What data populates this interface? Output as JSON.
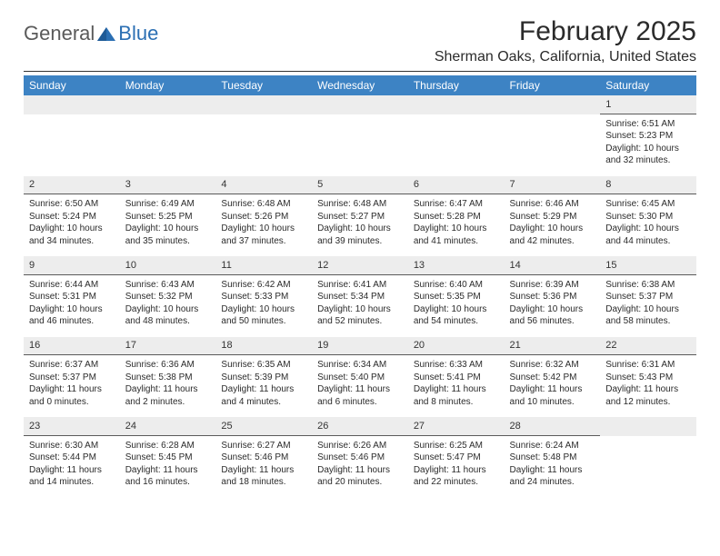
{
  "brand": {
    "text1": "General",
    "text2": "Blue"
  },
  "title": "February 2025",
  "location": "Sherman Oaks, California, United States",
  "colors": {
    "header_bg": "#3d83c4",
    "header_fg": "#ffffff",
    "daynum_bg": "#ededed",
    "rule": "#5a5a5a",
    "logo_blue": "#2b6fb3",
    "logo_gray": "#5a5a5a"
  },
  "days_of_week": [
    "Sunday",
    "Monday",
    "Tuesday",
    "Wednesday",
    "Thursday",
    "Friday",
    "Saturday"
  ],
  "weeks": [
    [
      null,
      null,
      null,
      null,
      null,
      null,
      {
        "n": "1",
        "sunrise": "Sunrise: 6:51 AM",
        "sunset": "Sunset: 5:23 PM",
        "day1": "Daylight: 10 hours",
        "day2": "and 32 minutes."
      }
    ],
    [
      {
        "n": "2",
        "sunrise": "Sunrise: 6:50 AM",
        "sunset": "Sunset: 5:24 PM",
        "day1": "Daylight: 10 hours",
        "day2": "and 34 minutes."
      },
      {
        "n": "3",
        "sunrise": "Sunrise: 6:49 AM",
        "sunset": "Sunset: 5:25 PM",
        "day1": "Daylight: 10 hours",
        "day2": "and 35 minutes."
      },
      {
        "n": "4",
        "sunrise": "Sunrise: 6:48 AM",
        "sunset": "Sunset: 5:26 PM",
        "day1": "Daylight: 10 hours",
        "day2": "and 37 minutes."
      },
      {
        "n": "5",
        "sunrise": "Sunrise: 6:48 AM",
        "sunset": "Sunset: 5:27 PM",
        "day1": "Daylight: 10 hours",
        "day2": "and 39 minutes."
      },
      {
        "n": "6",
        "sunrise": "Sunrise: 6:47 AM",
        "sunset": "Sunset: 5:28 PM",
        "day1": "Daylight: 10 hours",
        "day2": "and 41 minutes."
      },
      {
        "n": "7",
        "sunrise": "Sunrise: 6:46 AM",
        "sunset": "Sunset: 5:29 PM",
        "day1": "Daylight: 10 hours",
        "day2": "and 42 minutes."
      },
      {
        "n": "8",
        "sunrise": "Sunrise: 6:45 AM",
        "sunset": "Sunset: 5:30 PM",
        "day1": "Daylight: 10 hours",
        "day2": "and 44 minutes."
      }
    ],
    [
      {
        "n": "9",
        "sunrise": "Sunrise: 6:44 AM",
        "sunset": "Sunset: 5:31 PM",
        "day1": "Daylight: 10 hours",
        "day2": "and 46 minutes."
      },
      {
        "n": "10",
        "sunrise": "Sunrise: 6:43 AM",
        "sunset": "Sunset: 5:32 PM",
        "day1": "Daylight: 10 hours",
        "day2": "and 48 minutes."
      },
      {
        "n": "11",
        "sunrise": "Sunrise: 6:42 AM",
        "sunset": "Sunset: 5:33 PM",
        "day1": "Daylight: 10 hours",
        "day2": "and 50 minutes."
      },
      {
        "n": "12",
        "sunrise": "Sunrise: 6:41 AM",
        "sunset": "Sunset: 5:34 PM",
        "day1": "Daylight: 10 hours",
        "day2": "and 52 minutes."
      },
      {
        "n": "13",
        "sunrise": "Sunrise: 6:40 AM",
        "sunset": "Sunset: 5:35 PM",
        "day1": "Daylight: 10 hours",
        "day2": "and 54 minutes."
      },
      {
        "n": "14",
        "sunrise": "Sunrise: 6:39 AM",
        "sunset": "Sunset: 5:36 PM",
        "day1": "Daylight: 10 hours",
        "day2": "and 56 minutes."
      },
      {
        "n": "15",
        "sunrise": "Sunrise: 6:38 AM",
        "sunset": "Sunset: 5:37 PM",
        "day1": "Daylight: 10 hours",
        "day2": "and 58 minutes."
      }
    ],
    [
      {
        "n": "16",
        "sunrise": "Sunrise: 6:37 AM",
        "sunset": "Sunset: 5:37 PM",
        "day1": "Daylight: 11 hours",
        "day2": "and 0 minutes."
      },
      {
        "n": "17",
        "sunrise": "Sunrise: 6:36 AM",
        "sunset": "Sunset: 5:38 PM",
        "day1": "Daylight: 11 hours",
        "day2": "and 2 minutes."
      },
      {
        "n": "18",
        "sunrise": "Sunrise: 6:35 AM",
        "sunset": "Sunset: 5:39 PM",
        "day1": "Daylight: 11 hours",
        "day2": "and 4 minutes."
      },
      {
        "n": "19",
        "sunrise": "Sunrise: 6:34 AM",
        "sunset": "Sunset: 5:40 PM",
        "day1": "Daylight: 11 hours",
        "day2": "and 6 minutes."
      },
      {
        "n": "20",
        "sunrise": "Sunrise: 6:33 AM",
        "sunset": "Sunset: 5:41 PM",
        "day1": "Daylight: 11 hours",
        "day2": "and 8 minutes."
      },
      {
        "n": "21",
        "sunrise": "Sunrise: 6:32 AM",
        "sunset": "Sunset: 5:42 PM",
        "day1": "Daylight: 11 hours",
        "day2": "and 10 minutes."
      },
      {
        "n": "22",
        "sunrise": "Sunrise: 6:31 AM",
        "sunset": "Sunset: 5:43 PM",
        "day1": "Daylight: 11 hours",
        "day2": "and 12 minutes."
      }
    ],
    [
      {
        "n": "23",
        "sunrise": "Sunrise: 6:30 AM",
        "sunset": "Sunset: 5:44 PM",
        "day1": "Daylight: 11 hours",
        "day2": "and 14 minutes."
      },
      {
        "n": "24",
        "sunrise": "Sunrise: 6:28 AM",
        "sunset": "Sunset: 5:45 PM",
        "day1": "Daylight: 11 hours",
        "day2": "and 16 minutes."
      },
      {
        "n": "25",
        "sunrise": "Sunrise: 6:27 AM",
        "sunset": "Sunset: 5:46 PM",
        "day1": "Daylight: 11 hours",
        "day2": "and 18 minutes."
      },
      {
        "n": "26",
        "sunrise": "Sunrise: 6:26 AM",
        "sunset": "Sunset: 5:46 PM",
        "day1": "Daylight: 11 hours",
        "day2": "and 20 minutes."
      },
      {
        "n": "27",
        "sunrise": "Sunrise: 6:25 AM",
        "sunset": "Sunset: 5:47 PM",
        "day1": "Daylight: 11 hours",
        "day2": "and 22 minutes."
      },
      {
        "n": "28",
        "sunrise": "Sunrise: 6:24 AM",
        "sunset": "Sunset: 5:48 PM",
        "day1": "Daylight: 11 hours",
        "day2": "and 24 minutes."
      },
      null
    ]
  ]
}
